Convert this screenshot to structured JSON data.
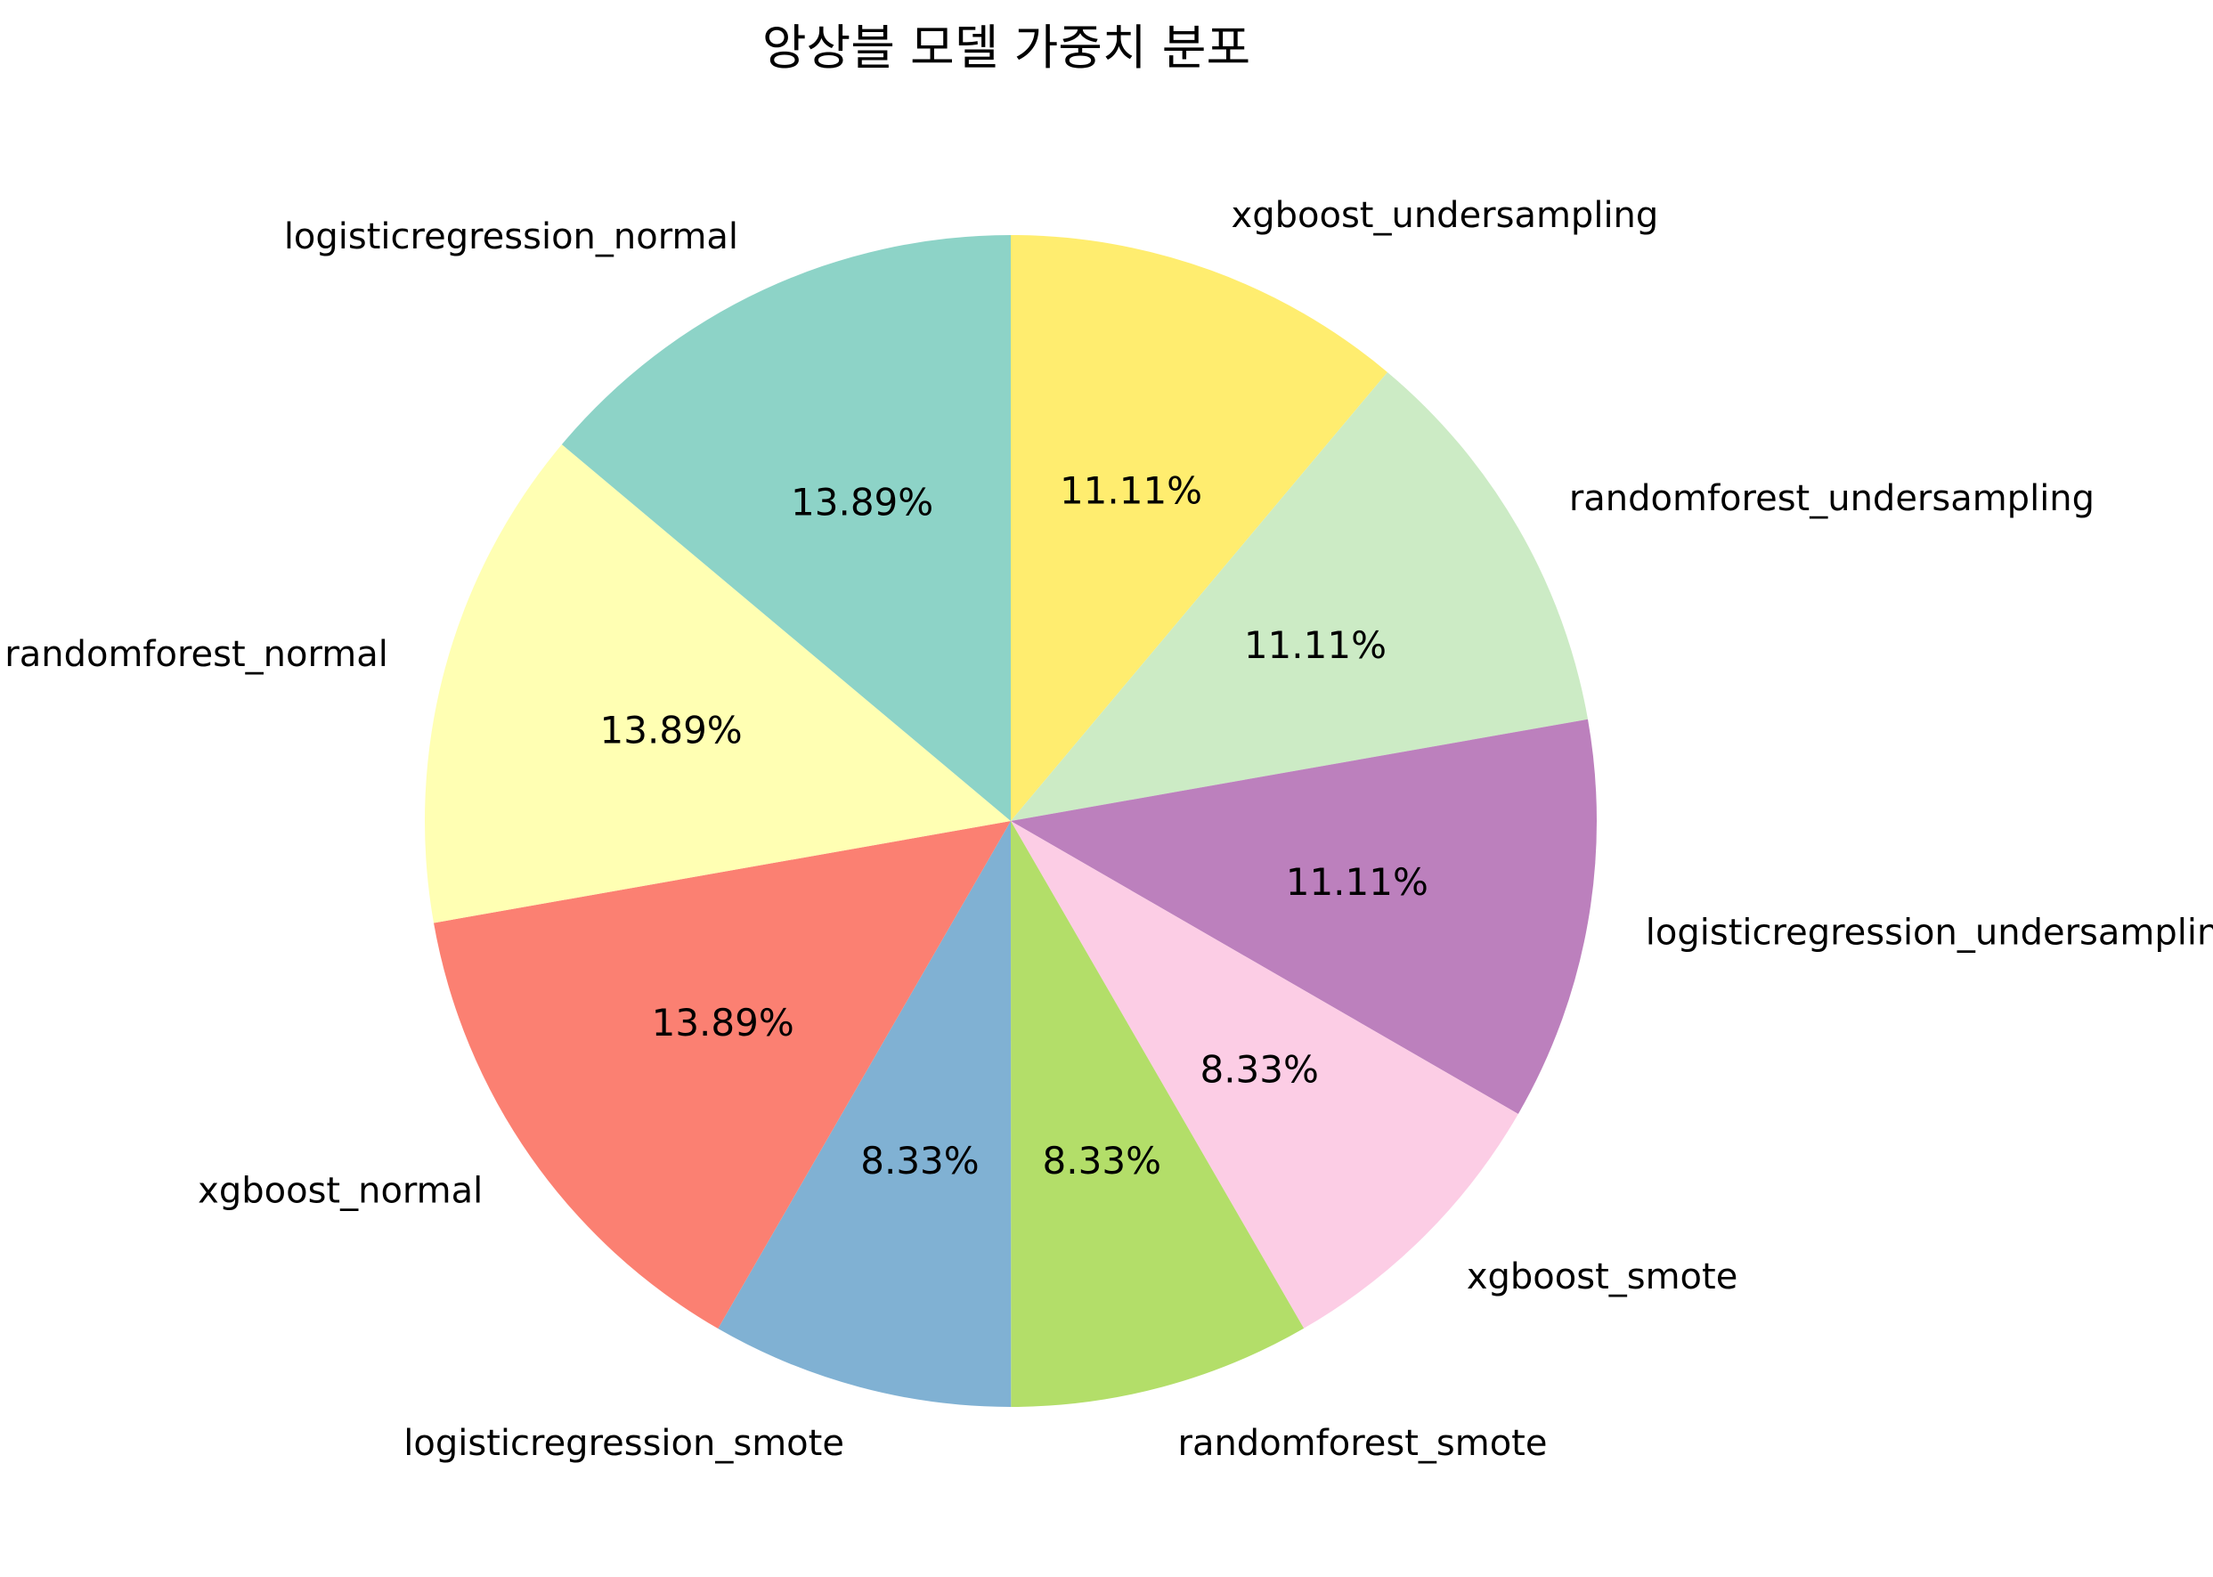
{
  "chart_data": {
    "type": "pie",
    "title": "앙상블 모델 가중치 분포",
    "start_angle_deg": 90,
    "direction": "clockwise",
    "slices": [
      {
        "label": "xgboost_undersampling",
        "value": 11.11,
        "pct_label": "11.11%",
        "color": "#ffed6f"
      },
      {
        "label": "randomforest_undersampling",
        "value": 11.11,
        "pct_label": "11.11%",
        "color": "#ccebc5"
      },
      {
        "label": "logisticregression_undersampling",
        "value": 11.11,
        "pct_label": "11.11%",
        "color": "#bc80bd"
      },
      {
        "label": "xgboost_smote",
        "value": 8.33,
        "pct_label": "8.33%",
        "color": "#fccde5"
      },
      {
        "label": "randomforest_smote",
        "value": 8.33,
        "pct_label": "8.33%",
        "color": "#b3de69"
      },
      {
        "label": "logisticregression_smote",
        "value": 8.33,
        "pct_label": "8.33%",
        "color": "#80b1d3"
      },
      {
        "label": "xgboost_normal",
        "value": 13.89,
        "pct_label": "13.89%",
        "color": "#fb8072"
      },
      {
        "label": "randomforest_normal",
        "value": 13.89,
        "pct_label": "13.89%",
        "color": "#ffffb3"
      },
      {
        "label": "logisticregression_normal",
        "value": 13.89,
        "pct_label": "13.89%",
        "color": "#8dd3c7"
      }
    ]
  }
}
